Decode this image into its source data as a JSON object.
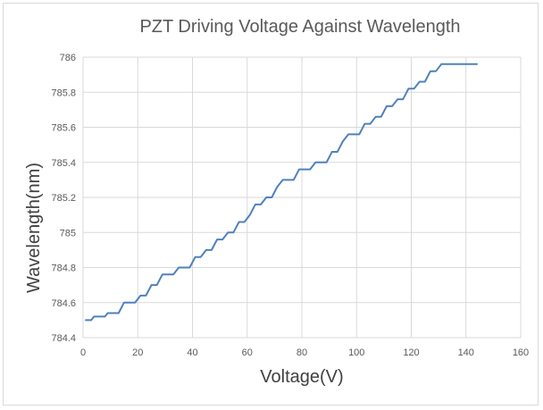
{
  "chart_data": {
    "type": "line",
    "title": "PZT Driving Voltage Against Wavelength",
    "xlabel": "Voltage(V)",
    "ylabel": "Wavelength(nm)",
    "xlim": [
      0,
      160
    ],
    "ylim": [
      784.4,
      786
    ],
    "xticks": [
      0,
      20,
      40,
      60,
      80,
      100,
      120,
      140,
      160
    ],
    "yticks": [
      784.4,
      784.6,
      784.8,
      785,
      785.2,
      785.4,
      785.6,
      785.8,
      786
    ],
    "xtick_labels": [
      "0",
      "20",
      "40",
      "60",
      "80",
      "100",
      "120",
      "140",
      "160"
    ],
    "ytick_labels": [
      "784.4",
      "784.6",
      "784.8",
      "785",
      "785.2",
      "785.4",
      "785.6",
      "785.8",
      "786"
    ],
    "grid": true,
    "legend": false,
    "series": [
      {
        "color": "#4f81bd",
        "x": [
          1,
          3,
          4,
          6,
          8,
          9,
          11,
          13,
          15,
          17,
          19,
          21,
          23,
          25,
          27,
          29,
          31,
          33,
          35,
          37,
          39,
          41,
          43,
          45,
          47,
          49,
          51,
          53,
          55,
          57,
          59,
          61,
          63,
          65,
          67,
          69,
          71,
          73,
          75,
          77,
          79,
          81,
          83,
          85,
          87,
          89,
          91,
          93,
          95,
          97,
          99,
          101,
          103,
          105,
          107,
          109,
          111,
          113,
          115,
          117,
          119,
          121,
          123,
          125,
          127,
          129,
          131,
          133,
          135,
          137,
          139,
          141,
          143,
          144
        ],
        "y": [
          784.5,
          784.5,
          784.52,
          784.52,
          784.52,
          784.54,
          784.54,
          784.54,
          784.6,
          784.6,
          784.6,
          784.64,
          784.64,
          784.7,
          784.7,
          784.76,
          784.76,
          784.76,
          784.8,
          784.8,
          784.8,
          784.86,
          784.86,
          784.9,
          784.9,
          784.96,
          784.96,
          785.0,
          785.0,
          785.06,
          785.06,
          785.1,
          785.16,
          785.16,
          785.2,
          785.2,
          785.26,
          785.3,
          785.3,
          785.3,
          785.36,
          785.36,
          785.36,
          785.4,
          785.4,
          785.4,
          785.46,
          785.46,
          785.52,
          785.56,
          785.56,
          785.56,
          785.62,
          785.62,
          785.66,
          785.66,
          785.72,
          785.72,
          785.76,
          785.76,
          785.82,
          785.82,
          785.86,
          785.86,
          785.92,
          785.92,
          785.96,
          785.96,
          785.96,
          785.96,
          785.96,
          785.96,
          785.96,
          785.96
        ]
      }
    ]
  }
}
